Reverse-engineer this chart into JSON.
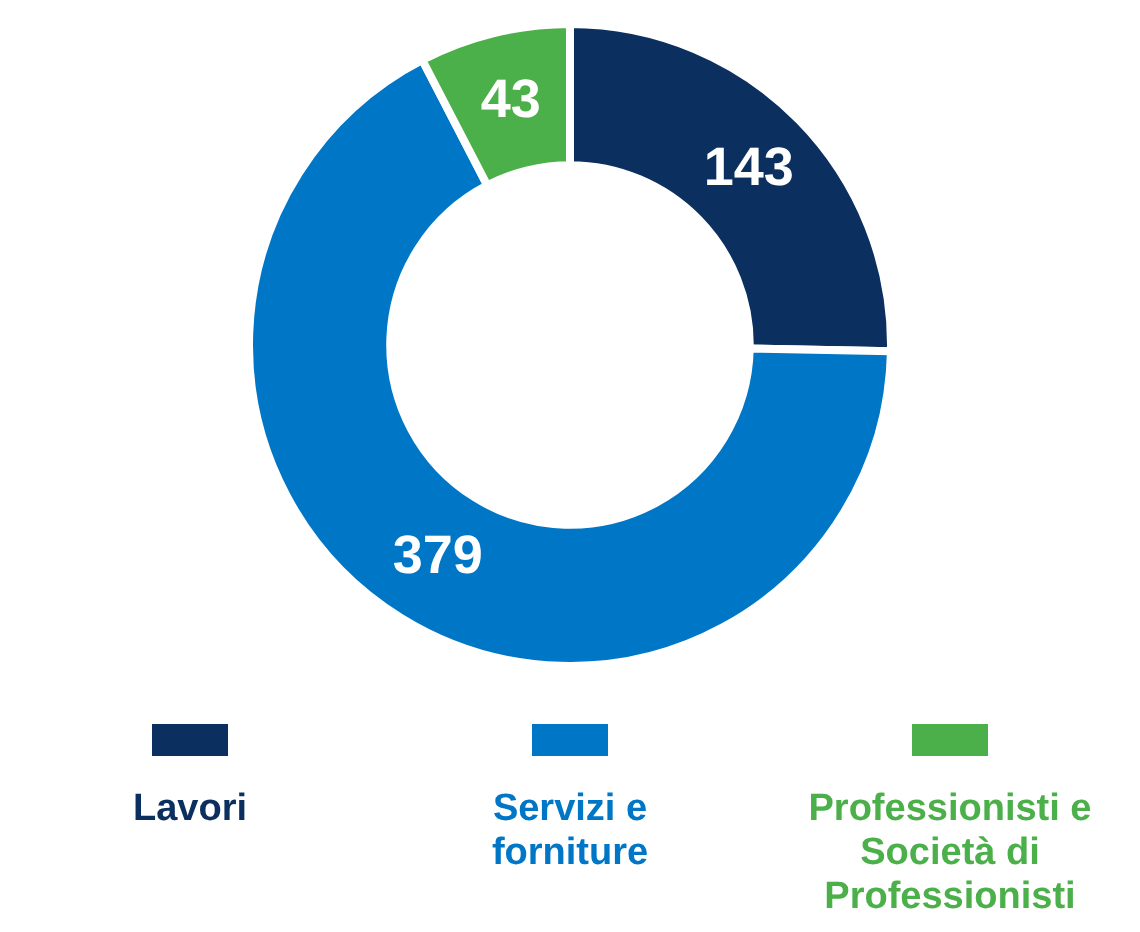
{
  "chart_data": {
    "type": "donut",
    "categories": [
      "Lavori",
      "Servizi e forniture",
      "Professionisti e Società di Professionisti"
    ],
    "values": [
      143,
      379,
      43
    ],
    "colors": [
      "#0b2f5e",
      "#0077c6",
      "#4cb04a"
    ],
    "data_labels": true,
    "legend": "bottom"
  }
}
